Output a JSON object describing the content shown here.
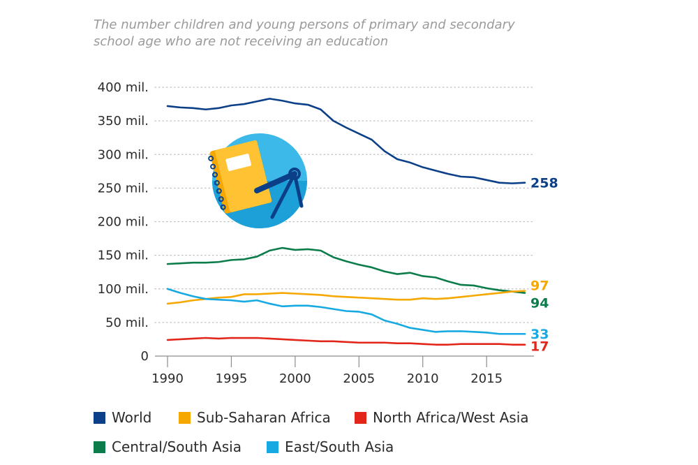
{
  "subtitle": "The number children and young persons of primary and secondary school age who are not receiving an education",
  "colors": {
    "world": "#0b3f87",
    "ssa": "#f6a800",
    "nawa": "#e2261a",
    "csa": "#0b7c4a",
    "esa": "#17a9e1",
    "grid": "#bfbfbf",
    "axis_text": "#2b2b2b"
  },
  "icon": {
    "name": "notebook-compass-icon"
  },
  "chart_data": {
    "type": "line",
    "xlim": [
      1990,
      2018
    ],
    "ylim": [
      0,
      400
    ],
    "grid": true,
    "legend_position": "bottom",
    "x_ticks": [
      1990,
      1995,
      2000,
      2005,
      2010,
      2015
    ],
    "x_tick_labels": [
      "1990",
      "1995",
      "2000",
      "2005",
      "2010",
      "2015"
    ],
    "y_ticks": [
      0,
      50,
      100,
      150,
      200,
      250,
      300,
      350,
      400
    ],
    "y_tick_labels": [
      "0",
      "50 mil.",
      "100 mil.",
      "150 mil.",
      "200 mil.",
      "250 mil.",
      "300 mil.",
      "350 mil.",
      "400 mil."
    ],
    "x": [
      1990,
      1991,
      1992,
      1993,
      1994,
      1995,
      1996,
      1997,
      1998,
      1999,
      2000,
      2001,
      2002,
      2003,
      2004,
      2005,
      2006,
      2007,
      2008,
      2009,
      2010,
      2011,
      2012,
      2013,
      2014,
      2015,
      2016,
      2017,
      2018
    ],
    "series": [
      {
        "key": "world",
        "name": "World",
        "end_label": "258",
        "values": [
          372,
          370,
          369,
          367,
          369,
          373,
          375,
          379,
          383,
          380,
          376,
          374,
          367,
          350,
          340,
          331,
          322,
          305,
          293,
          288,
          281,
          276,
          271,
          267,
          266,
          262,
          258,
          257,
          258
        ]
      },
      {
        "key": "csa",
        "name": "Central/South Asia",
        "end_label": "94",
        "values": [
          137,
          138,
          139,
          139,
          140,
          143,
          144,
          148,
          157,
          161,
          158,
          159,
          157,
          147,
          141,
          136,
          132,
          126,
          122,
          124,
          119,
          117,
          111,
          106,
          105,
          101,
          98,
          96,
          94
        ]
      },
      {
        "key": "ssa",
        "name": "Sub-Saharan Africa",
        "end_label": "97",
        "values": [
          78,
          80,
          83,
          85,
          87,
          88,
          92,
          92,
          93,
          94,
          93,
          92,
          91,
          89,
          88,
          87,
          86,
          85,
          84,
          84,
          86,
          85,
          86,
          88,
          90,
          92,
          94,
          96,
          97
        ]
      },
      {
        "key": "esa",
        "name": "East/South Asia",
        "end_label": "33",
        "values": [
          100,
          94,
          89,
          85,
          84,
          83,
          81,
          83,
          78,
          74,
          75,
          75,
          73,
          70,
          67,
          66,
          62,
          53,
          48,
          42,
          39,
          36,
          37,
          37,
          36,
          35,
          33,
          33,
          33
        ]
      },
      {
        "key": "nawa",
        "name": "North Africa/West Asia",
        "end_label": "17",
        "values": [
          24,
          25,
          26,
          27,
          26,
          27,
          27,
          27,
          26,
          25,
          24,
          23,
          22,
          22,
          21,
          20,
          20,
          20,
          19,
          19,
          18,
          17,
          17,
          18,
          18,
          18,
          18,
          17,
          17
        ]
      }
    ]
  },
  "legend": [
    {
      "key": "world",
      "label": "World"
    },
    {
      "key": "ssa",
      "label": "Sub-Saharan Africa"
    },
    {
      "key": "nawa",
      "label": "North Africa/West Asia"
    },
    {
      "key": "csa",
      "label": "Central/South Asia"
    },
    {
      "key": "esa",
      "label": "East/South Asia"
    }
  ]
}
